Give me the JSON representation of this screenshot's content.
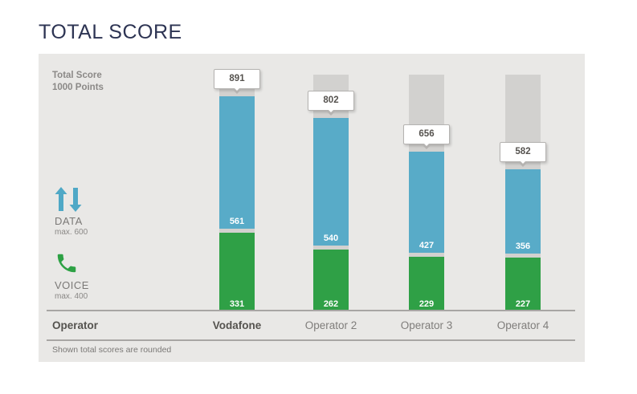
{
  "title": "TOTAL SCORE",
  "panel": {
    "scale_label_line1": "Total Score",
    "scale_label_line2": "1000 Points",
    "operator_header": "Operator",
    "footnote": "Shown total scores are rounded"
  },
  "legend": {
    "data": {
      "label": "DATA",
      "max": "max. 600",
      "icon": "data-transfer-arrows-icon",
      "color": "#4fa8c6"
    },
    "voice": {
      "label": "VOICE",
      "max": "max. 400",
      "icon": "phone-icon",
      "color": "#2da144"
    }
  },
  "chart_data": {
    "type": "bar",
    "stacked": true,
    "orientation": "vertical",
    "max_points": 1000,
    "categories": [
      "Vodafone",
      "Operator 2",
      "Operator 3",
      "Operator 4"
    ],
    "totals": [
      891,
      802,
      656,
      582
    ],
    "series": [
      {
        "name": "VOICE",
        "max": 400,
        "color": "#2fa046",
        "values": [
          331,
          262,
          229,
          227
        ]
      },
      {
        "name": "DATA",
        "max": 600,
        "color": "#58abc8",
        "values": [
          561,
          540,
          427,
          356
        ]
      }
    ],
    "highlighted_category": "Vodafone",
    "track_color": "#d2d1cf",
    "note": "Shown total scores are rounded"
  }
}
